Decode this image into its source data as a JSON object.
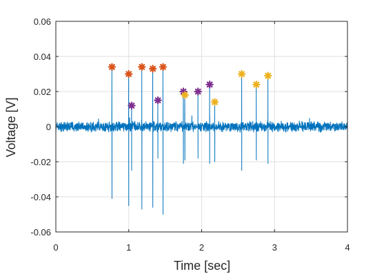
{
  "chart_data": {
    "type": "line",
    "xlabel": "Time [sec]",
    "ylabel": "Voltage [V]",
    "xlim": [
      0,
      4
    ],
    "ylim": [
      -0.06,
      0.06
    ],
    "xticks": [
      0,
      1,
      2,
      3,
      4
    ],
    "xtick_labels": [
      "0",
      "1",
      "2",
      "3",
      "4"
    ],
    "yticks": [
      -0.06,
      -0.04,
      -0.02,
      0,
      0.02,
      0.04,
      0.06
    ],
    "ytick_labels": [
      "-0.06",
      "-0.04",
      "-0.02",
      "0",
      "0.02",
      "0.04",
      "0.06"
    ],
    "grid": true,
    "signal": {
      "color": "#0072bd",
      "baseline": 0.0,
      "noise_amplitude": 0.003,
      "spikes": [
        {
          "t": 0.77,
          "peak": 0.034,
          "trough": -0.041
        },
        {
          "t": 1.0,
          "peak": 0.03,
          "trough": -0.045
        },
        {
          "t": 1.04,
          "peak": 0.012,
          "trough": -0.025
        },
        {
          "t": 1.18,
          "peak": 0.034,
          "trough": -0.047
        },
        {
          "t": 1.33,
          "peak": 0.033,
          "trough": -0.046
        },
        {
          "t": 1.4,
          "peak": 0.015,
          "trough": -0.018
        },
        {
          "t": 1.47,
          "peak": 0.034,
          "trough": -0.05
        },
        {
          "t": 1.75,
          "peak": 0.02,
          "trough": -0.021
        },
        {
          "t": 1.77,
          "peak": 0.018,
          "trough": -0.019
        },
        {
          "t": 1.95,
          "peak": 0.02,
          "trough": -0.018
        },
        {
          "t": 2.11,
          "peak": 0.024,
          "trough": -0.021
        },
        {
          "t": 2.18,
          "peak": 0.014,
          "trough": -0.02
        },
        {
          "t": 2.55,
          "peak": 0.03,
          "trough": -0.025
        },
        {
          "t": 2.75,
          "peak": 0.024,
          "trough": -0.019
        },
        {
          "t": 2.91,
          "peak": 0.029,
          "trough": -0.021
        }
      ]
    },
    "markers": [
      {
        "x": 0.77,
        "y": 0.034,
        "color": "#d95319"
      },
      {
        "x": 1.0,
        "y": 0.03,
        "color": "#d95319"
      },
      {
        "x": 1.18,
        "y": 0.034,
        "color": "#d95319"
      },
      {
        "x": 1.33,
        "y": 0.033,
        "color": "#d95319"
      },
      {
        "x": 1.47,
        "y": 0.034,
        "color": "#d95319"
      },
      {
        "x": 1.04,
        "y": 0.012,
        "color": "#7e2f8e"
      },
      {
        "x": 1.4,
        "y": 0.015,
        "color": "#7e2f8e"
      },
      {
        "x": 1.75,
        "y": 0.02,
        "color": "#7e2f8e"
      },
      {
        "x": 1.95,
        "y": 0.02,
        "color": "#7e2f8e"
      },
      {
        "x": 2.11,
        "y": 0.024,
        "color": "#7e2f8e"
      },
      {
        "x": 1.77,
        "y": 0.018,
        "color": "#edb120"
      },
      {
        "x": 2.18,
        "y": 0.014,
        "color": "#edb120"
      },
      {
        "x": 2.55,
        "y": 0.03,
        "color": "#edb120"
      },
      {
        "x": 2.75,
        "y": 0.024,
        "color": "#edb120"
      },
      {
        "x": 2.91,
        "y": 0.029,
        "color": "#edb120"
      }
    ]
  }
}
